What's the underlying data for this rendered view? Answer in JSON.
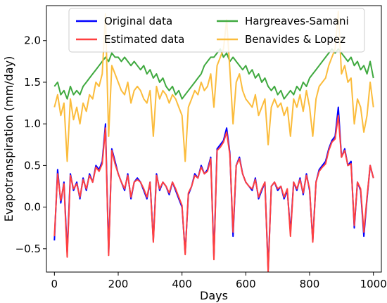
{
  "chart_data": {
    "type": "line",
    "xlabel": "Days",
    "ylabel": "Evapotranspiration (mm/day)",
    "xlim": [
      -25,
      1025
    ],
    "ylim": [
      -0.78,
      2.42
    ],
    "xticks": [
      0,
      200,
      400,
      600,
      800,
      1000
    ],
    "yticks": [
      -0.5,
      0.0,
      0.5,
      1.0,
      1.5,
      2.0
    ],
    "xtick_labels": [
      "0",
      "200",
      "400",
      "600",
      "800",
      "1000"
    ],
    "ytick_labels": [
      "−0.5",
      "0.0",
      "0.5",
      "1.0",
      "1.5",
      "2.0"
    ],
    "grid": false,
    "legend_position": "top-center",
    "series": [
      {
        "name": "Original data",
        "color": "#0000ff",
        "x": [
          0,
          10,
          20,
          30,
          40,
          50,
          60,
          70,
          80,
          90,
          100,
          110,
          120,
          130,
          140,
          150,
          160,
          170,
          180,
          190,
          200,
          210,
          220,
          230,
          240,
          250,
          260,
          270,
          280,
          290,
          300,
          310,
          320,
          330,
          340,
          350,
          360,
          370,
          380,
          390,
          400,
          410,
          420,
          430,
          440,
          450,
          460,
          470,
          480,
          490,
          500,
          510,
          520,
          530,
          540,
          550,
          560,
          570,
          580,
          590,
          600,
          610,
          620,
          630,
          640,
          650,
          660,
          670,
          680,
          690,
          700,
          710,
          720,
          730,
          740,
          750,
          760,
          770,
          780,
          790,
          800,
          810,
          820,
          830,
          840,
          850,
          860,
          870,
          880,
          890,
          900,
          910,
          920,
          930,
          940,
          950,
          960,
          970,
          980,
          990,
          1000
        ],
        "y": [
          -0.4,
          0.45,
          0.05,
          0.3,
          -0.55,
          0.4,
          0.2,
          0.3,
          0.1,
          0.35,
          0.2,
          0.4,
          0.3,
          0.5,
          0.45,
          0.55,
          1.0,
          -0.55,
          0.7,
          0.55,
          0.4,
          0.3,
          0.2,
          0.4,
          0.1,
          0.3,
          0.35,
          0.3,
          0.2,
          0.1,
          0.3,
          -0.4,
          0.4,
          0.2,
          0.3,
          0.25,
          0.15,
          0.3,
          0.2,
          0.1,
          0.0,
          -0.55,
          0.15,
          0.25,
          0.4,
          0.35,
          0.5,
          0.4,
          0.45,
          0.6,
          -0.6,
          0.7,
          0.75,
          0.8,
          0.95,
          0.65,
          -0.35,
          0.5,
          0.6,
          0.4,
          0.3,
          0.25,
          0.2,
          0.35,
          0.1,
          0.2,
          0.3,
          -0.75,
          0.25,
          0.3,
          0.2,
          0.25,
          0.1,
          0.2,
          -0.3,
          0.3,
          0.2,
          0.35,
          0.15,
          0.4,
          0.2,
          -0.4,
          0.3,
          0.45,
          0.5,
          0.55,
          0.7,
          0.8,
          0.85,
          1.2,
          0.6,
          0.7,
          0.5,
          0.55,
          -0.25,
          0.3,
          0.2,
          -0.35,
          0.1,
          0.5,
          0.35
        ]
      },
      {
        "name": "Estimated data",
        "color": "#ff4040",
        "x": [
          0,
          10,
          20,
          30,
          40,
          50,
          60,
          70,
          80,
          90,
          100,
          110,
          120,
          130,
          140,
          150,
          160,
          170,
          180,
          190,
          200,
          210,
          220,
          230,
          240,
          250,
          260,
          270,
          280,
          290,
          300,
          310,
          320,
          330,
          340,
          350,
          360,
          370,
          380,
          390,
          400,
          410,
          420,
          430,
          440,
          450,
          460,
          470,
          480,
          490,
          500,
          510,
          520,
          530,
          540,
          550,
          560,
          570,
          580,
          590,
          600,
          610,
          620,
          630,
          640,
          650,
          660,
          670,
          680,
          690,
          700,
          710,
          720,
          730,
          740,
          750,
          760,
          770,
          780,
          790,
          800,
          810,
          820,
          830,
          840,
          850,
          860,
          870,
          880,
          890,
          900,
          910,
          920,
          930,
          940,
          950,
          960,
          970,
          980,
          990,
          1000
        ],
        "y": [
          -0.35,
          0.4,
          0.08,
          0.28,
          -0.6,
          0.38,
          0.22,
          0.28,
          0.12,
          0.33,
          0.22,
          0.38,
          0.3,
          0.48,
          0.43,
          0.52,
          0.95,
          -0.58,
          0.68,
          0.52,
          0.4,
          0.3,
          0.22,
          0.38,
          0.12,
          0.3,
          0.33,
          0.3,
          0.22,
          0.12,
          0.3,
          -0.42,
          0.38,
          0.22,
          0.3,
          0.25,
          0.17,
          0.3,
          0.22,
          0.12,
          0.02,
          -0.57,
          0.17,
          0.25,
          0.38,
          0.35,
          0.48,
          0.4,
          0.43,
          0.58,
          -0.63,
          0.68,
          0.72,
          0.78,
          0.9,
          0.63,
          -0.3,
          0.5,
          0.58,
          0.4,
          0.3,
          0.25,
          0.22,
          0.33,
          0.12,
          0.22,
          0.3,
          -0.78,
          0.25,
          0.3,
          0.22,
          0.25,
          0.12,
          0.22,
          -0.35,
          0.3,
          0.22,
          0.33,
          0.17,
          0.38,
          0.22,
          -0.42,
          0.3,
          0.43,
          0.48,
          0.52,
          0.68,
          0.78,
          0.82,
          1.1,
          0.6,
          0.68,
          0.5,
          0.52,
          -0.22,
          0.3,
          0.22,
          -0.3,
          0.12,
          0.5,
          0.35
        ]
      },
      {
        "name": "Hargreaves-Samani",
        "color": "#3fa93f",
        "x": [
          0,
          10,
          20,
          30,
          40,
          50,
          60,
          70,
          80,
          90,
          100,
          110,
          120,
          130,
          140,
          150,
          160,
          170,
          180,
          190,
          200,
          210,
          220,
          230,
          240,
          250,
          260,
          270,
          280,
          290,
          300,
          310,
          320,
          330,
          340,
          350,
          360,
          370,
          380,
          390,
          400,
          410,
          420,
          430,
          440,
          450,
          460,
          470,
          480,
          490,
          500,
          510,
          520,
          530,
          540,
          550,
          560,
          570,
          580,
          590,
          600,
          610,
          620,
          630,
          640,
          650,
          660,
          670,
          680,
          690,
          700,
          710,
          720,
          730,
          740,
          750,
          760,
          770,
          780,
          790,
          800,
          810,
          820,
          830,
          840,
          850,
          860,
          870,
          880,
          890,
          900,
          910,
          920,
          930,
          940,
          950,
          960,
          970,
          980,
          990,
          1000
        ],
        "y": [
          1.45,
          1.5,
          1.35,
          1.4,
          1.3,
          1.45,
          1.35,
          1.4,
          1.35,
          1.45,
          1.5,
          1.55,
          1.6,
          1.65,
          1.7,
          1.75,
          1.8,
          1.75,
          1.85,
          1.8,
          1.8,
          1.75,
          1.8,
          1.75,
          1.7,
          1.75,
          1.7,
          1.65,
          1.7,
          1.6,
          1.65,
          1.55,
          1.6,
          1.5,
          1.55,
          1.45,
          1.4,
          1.45,
          1.35,
          1.4,
          1.3,
          1.35,
          1.4,
          1.45,
          1.5,
          1.55,
          1.6,
          1.7,
          1.75,
          1.8,
          1.8,
          1.85,
          1.9,
          1.8,
          1.85,
          1.75,
          1.8,
          1.75,
          1.7,
          1.65,
          1.7,
          1.6,
          1.65,
          1.55,
          1.6,
          1.5,
          1.55,
          1.45,
          1.4,
          1.45,
          1.35,
          1.4,
          1.3,
          1.35,
          1.4,
          1.35,
          1.45,
          1.4,
          1.5,
          1.45,
          1.55,
          1.6,
          1.65,
          1.7,
          1.75,
          1.8,
          1.85,
          1.9,
          1.85,
          1.9,
          1.85,
          1.8,
          1.75,
          1.8,
          1.7,
          1.75,
          1.65,
          1.7,
          1.6,
          1.75,
          1.55
        ]
      },
      {
        "name": "Benavides & Lopez",
        "color": "#fbbc3c",
        "x": [
          0,
          10,
          20,
          30,
          40,
          50,
          60,
          70,
          80,
          90,
          100,
          110,
          120,
          130,
          140,
          150,
          160,
          170,
          180,
          190,
          200,
          210,
          220,
          230,
          240,
          250,
          260,
          270,
          280,
          290,
          300,
          310,
          320,
          330,
          340,
          350,
          360,
          370,
          380,
          390,
          400,
          410,
          420,
          430,
          440,
          450,
          460,
          470,
          480,
          490,
          500,
          510,
          520,
          530,
          540,
          550,
          560,
          570,
          580,
          590,
          600,
          610,
          620,
          630,
          640,
          650,
          660,
          670,
          680,
          690,
          700,
          710,
          720,
          730,
          740,
          750,
          760,
          770,
          780,
          790,
          800,
          810,
          820,
          830,
          840,
          850,
          860,
          870,
          880,
          890,
          900,
          910,
          920,
          930,
          940,
          950,
          960,
          970,
          980,
          990,
          1000
        ],
        "y": [
          1.2,
          1.35,
          1.1,
          1.25,
          0.55,
          1.3,
          1.05,
          1.2,
          1.0,
          1.25,
          1.15,
          1.35,
          1.3,
          1.5,
          1.45,
          1.6,
          2.32,
          0.85,
          1.7,
          1.6,
          1.5,
          1.4,
          1.35,
          1.5,
          1.25,
          1.4,
          1.45,
          1.4,
          1.3,
          1.25,
          1.4,
          0.85,
          1.45,
          1.3,
          1.4,
          1.35,
          1.25,
          1.35,
          1.3,
          1.2,
          1.1,
          0.55,
          1.2,
          1.3,
          1.4,
          1.35,
          1.5,
          1.4,
          1.45,
          1.6,
          1.2,
          1.7,
          1.8,
          1.9,
          2.25,
          1.65,
          1.0,
          1.5,
          1.6,
          1.4,
          1.3,
          1.25,
          1.2,
          1.35,
          1.1,
          1.2,
          1.3,
          0.75,
          1.2,
          1.3,
          1.2,
          1.25,
          1.1,
          1.2,
          0.85,
          1.3,
          1.2,
          1.35,
          1.15,
          1.4,
          1.2,
          0.85,
          1.3,
          1.45,
          1.5,
          1.55,
          1.7,
          1.8,
          1.9,
          2.35,
          1.6,
          1.7,
          1.5,
          1.55,
          1.0,
          1.3,
          1.2,
          0.9,
          1.1,
          1.5,
          1.2
        ]
      }
    ]
  }
}
